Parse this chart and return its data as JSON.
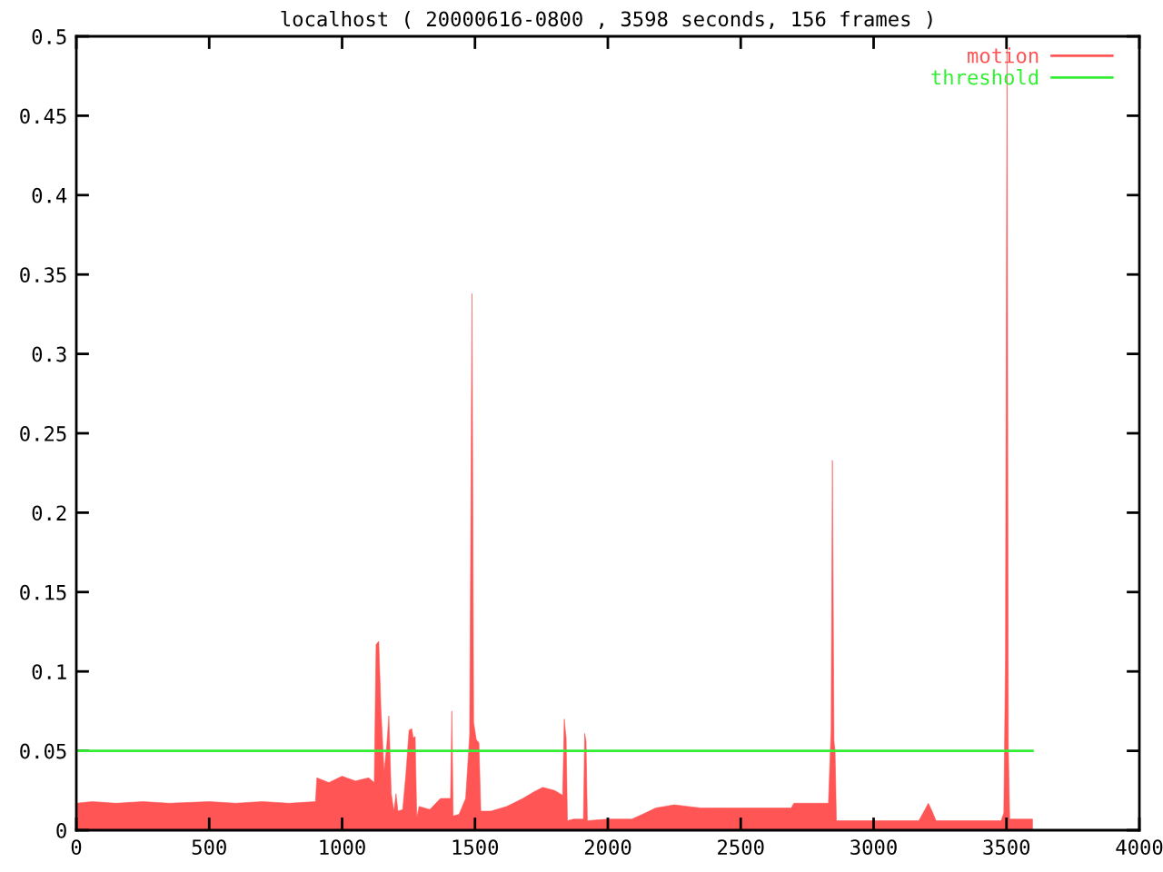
{
  "chart_data": {
    "type": "area",
    "title": "localhost ( 20000616-0800 , 3598 seconds, 156 frames )",
    "xlim": [
      0,
      4000
    ],
    "xticks": [
      0,
      500,
      1000,
      1500,
      2000,
      2500,
      3000,
      3500,
      4000
    ],
    "ylim": [
      0,
      0.5
    ],
    "yticks": [
      0,
      0.05,
      0.1,
      0.15,
      0.2,
      0.25,
      0.3,
      0.35,
      0.4,
      0.45,
      0.5
    ],
    "grid": false,
    "legend": "top right",
    "series": [
      {
        "name": "motion",
        "type": "area",
        "color": "#ff5555",
        "x": [
          0,
          60,
          150,
          250,
          350,
          500,
          600,
          700,
          800,
          900,
          905,
          950,
          1000,
          1050,
          1100,
          1121,
          1128,
          1138,
          1146,
          1158,
          1168,
          1176,
          1185,
          1195,
          1203,
          1210,
          1228,
          1240,
          1252,
          1262,
          1268,
          1275,
          1281,
          1290,
          1330,
          1370,
          1408,
          1413,
          1418,
          1440,
          1465,
          1480,
          1489,
          1495,
          1505,
          1515,
          1522,
          1560,
          1620,
          1680,
          1720,
          1755,
          1800,
          1830,
          1836,
          1843,
          1848,
          1870,
          1908,
          1913,
          1918,
          1923,
          2000,
          2090,
          2130,
          2180,
          2250,
          2350,
          2500,
          2690,
          2700,
          2830,
          2840,
          2845,
          2851,
          2855,
          2860,
          3000,
          3170,
          3190,
          3206,
          3220,
          3235,
          3480,
          3490,
          3496,
          3502,
          3507,
          3512,
          3598
        ],
        "values": [
          0.017,
          0.018,
          0.017,
          0.018,
          0.017,
          0.018,
          0.017,
          0.018,
          0.017,
          0.018,
          0.033,
          0.03,
          0.034,
          0.031,
          0.033,
          0.03,
          0.117,
          0.119,
          0.077,
          0.037,
          0.053,
          0.072,
          0.023,
          0.012,
          0.023,
          0.012,
          0.013,
          0.035,
          0.063,
          0.064,
          0.058,
          0.059,
          0.008,
          0.015,
          0.013,
          0.02,
          0.02,
          0.075,
          0.009,
          0.01,
          0.02,
          0.06,
          0.338,
          0.068,
          0.057,
          0.055,
          0.012,
          0.012,
          0.015,
          0.02,
          0.024,
          0.027,
          0.025,
          0.022,
          0.07,
          0.058,
          0.006,
          0.007,
          0.007,
          0.061,
          0.056,
          0.006,
          0.007,
          0.007,
          0.01,
          0.014,
          0.016,
          0.014,
          0.014,
          0.014,
          0.017,
          0.017,
          0.063,
          0.233,
          0.056,
          0.05,
          0.006,
          0.006,
          0.006,
          0.012,
          0.017,
          0.012,
          0.006,
          0.006,
          0.011,
          0.107,
          0.5,
          0.052,
          0.007,
          0.007
        ]
      },
      {
        "name": "threshold",
        "type": "line",
        "color": "#33ee33",
        "x": [
          0,
          3598
        ],
        "values": [
          0.05,
          0.05
        ]
      }
    ]
  }
}
